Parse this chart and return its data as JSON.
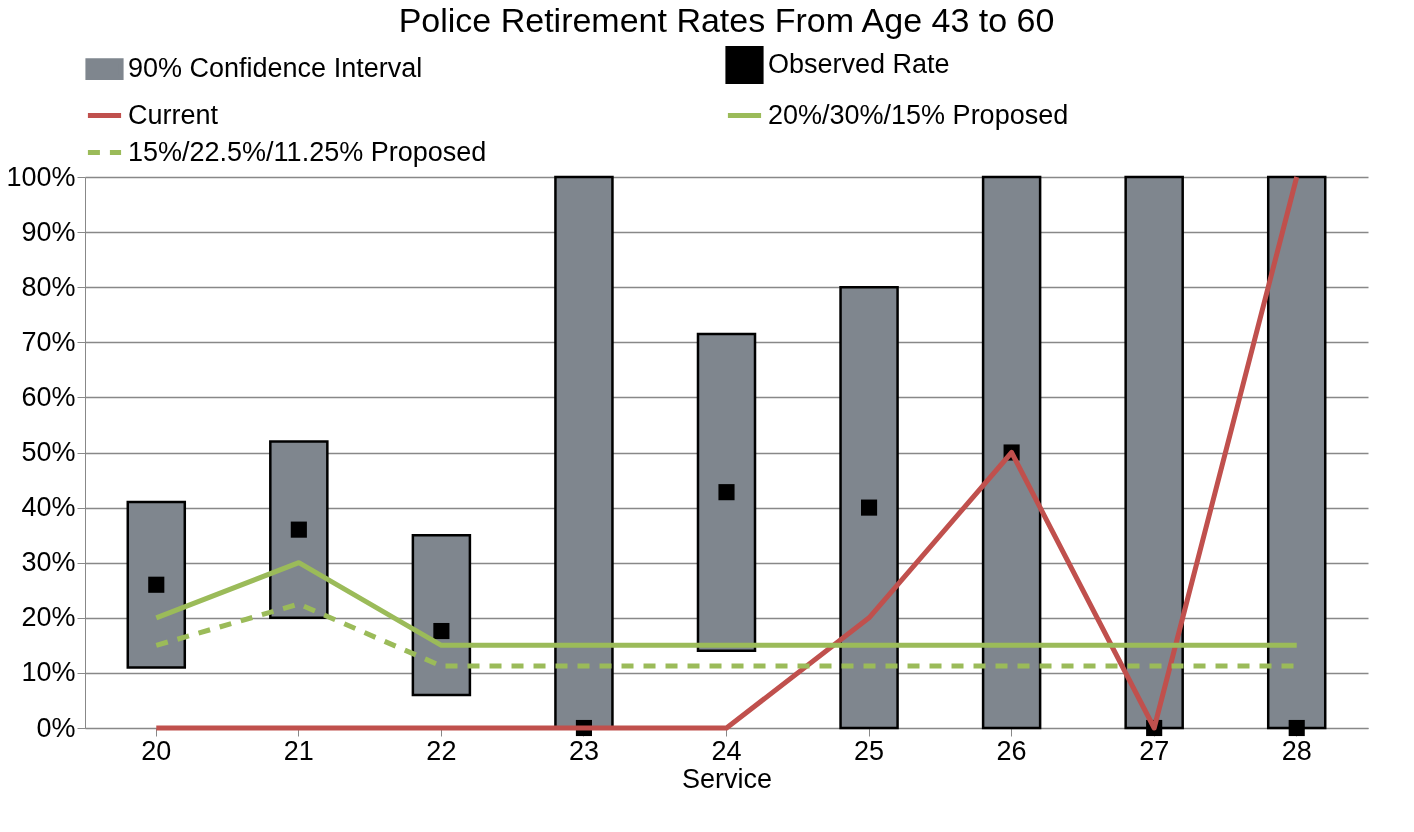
{
  "chart_data": {
    "type": "bar",
    "title": "Police Retirement Rates From Age 43 to 60",
    "xlabel": "Service",
    "categories": [
      "20",
      "21",
      "22",
      "23",
      "24",
      "25",
      "26",
      "27",
      "28"
    ],
    "series": [
      {
        "name": "90% Confidence Interval",
        "color": "#7f868e",
        "base": [
          11,
          20,
          6,
          0,
          14,
          0,
          0,
          0,
          0
        ],
        "values": [
          30,
          32,
          29,
          100,
          57.5,
          80,
          100,
          100,
          100
        ]
      },
      {
        "name": "Observed Rate",
        "type": "scatter",
        "marker": "square",
        "color": "#000000",
        "values": [
          26,
          36,
          17.6,
          0,
          42.8,
          40,
          50,
          0,
          0
        ]
      },
      {
        "name": "Current",
        "type": "line",
        "color": "#c0504d",
        "values": [
          0,
          0,
          0,
          0,
          0,
          20,
          50,
          0,
          100
        ]
      },
      {
        "name": "20%/30%/15% Proposed",
        "type": "line",
        "color": "#9bbb59",
        "values": [
          20,
          30,
          15,
          15,
          15,
          15,
          15,
          15,
          15
        ]
      },
      {
        "name": "15%/22.5%/11.25% Proposed",
        "type": "line",
        "color": "#9bbb59",
        "line_style": "dashed",
        "values": [
          15,
          22.5,
          11.25,
          11.25,
          11.25,
          11.25,
          11.25,
          11.25,
          11.25
        ]
      }
    ],
    "ylim": [
      0,
      100
    ],
    "yticks": [
      {
        "value": 0,
        "label": "0%"
      },
      {
        "value": 10,
        "label": "10%"
      },
      {
        "value": 20,
        "label": "20%"
      },
      {
        "value": 30,
        "label": "30%"
      },
      {
        "value": 40,
        "label": "40%"
      },
      {
        "value": 50,
        "label": "50%"
      },
      {
        "value": 60,
        "label": "60%"
      },
      {
        "value": 70,
        "label": "70%"
      },
      {
        "value": 80,
        "label": "80%"
      },
      {
        "value": 90,
        "label": "90%"
      },
      {
        "value": 100,
        "label": "100%"
      }
    ],
    "grid": "y",
    "legend": "top"
  }
}
